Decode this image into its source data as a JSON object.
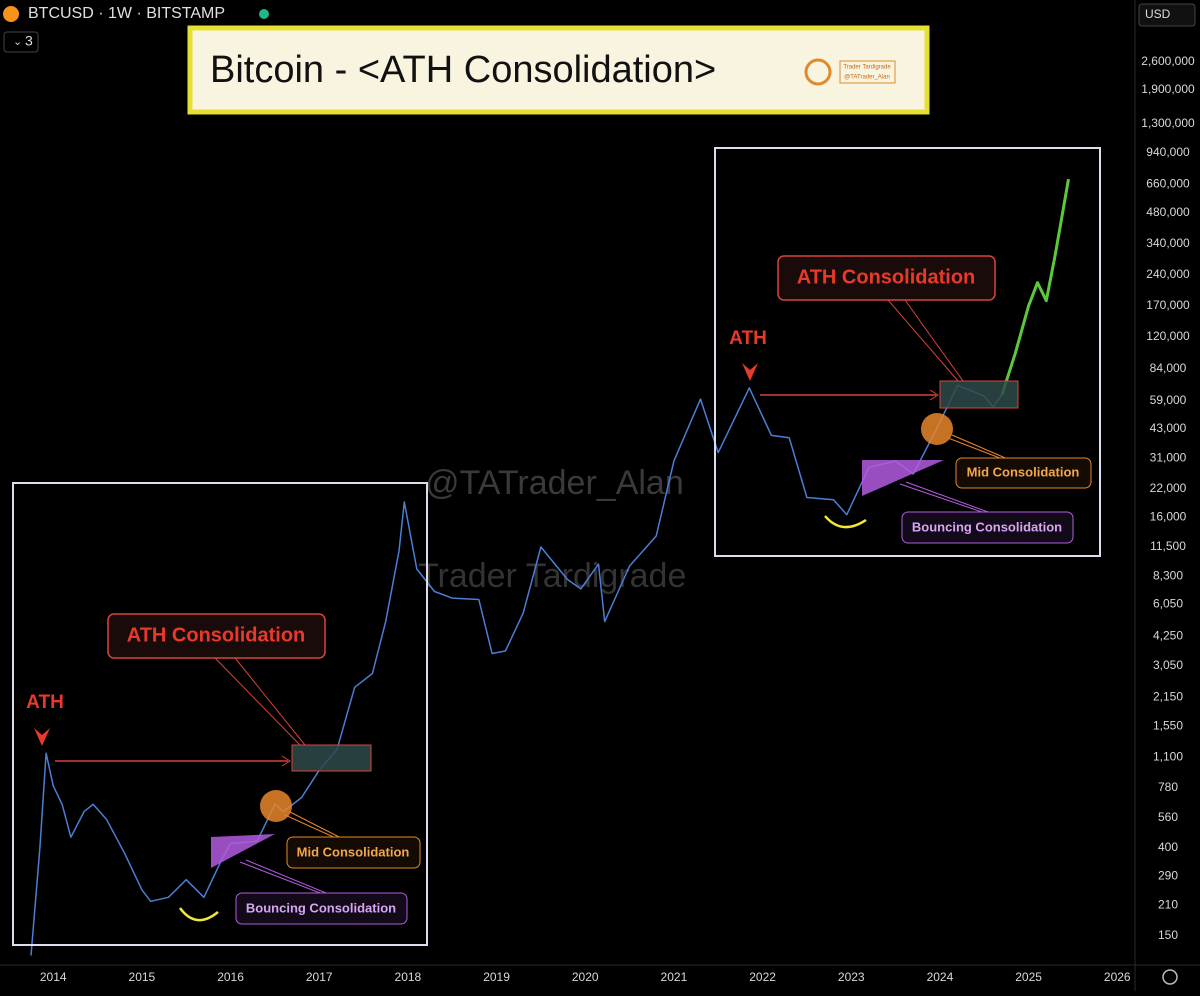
{
  "chart_data": {
    "type": "line",
    "title": "Bitcoin - <ATH Consolidation>",
    "symbol": "BTCUSD · 1W · BITSTAMP",
    "indicator_count": 3,
    "currency": "USD",
    "logo_text": [
      "Trader Tardigrade",
      "@TATrader_Alan"
    ],
    "watermarks": [
      "@TATrader_Alan",
      "Trader Tardigrade"
    ],
    "annotations": [
      "ATH",
      "ATH Consolidation",
      "Mid Consolidation",
      "Bouncing Consolidation",
      "ATH",
      "ATH Consolidation",
      "Mid Consolidation",
      "Bouncing Consolidation"
    ],
    "log_scale": true,
    "grid": false,
    "xlim": [
      2013.4,
      2026.2
    ],
    "xticks": [
      2014,
      2015,
      2016,
      2017,
      2018,
      2019,
      2020,
      2021,
      2022,
      2023,
      2024,
      2025,
      2026
    ],
    "ylim": [
      108,
      3700000
    ],
    "yticks": [
      150,
      210,
      290,
      400,
      560,
      780,
      {
        "value": 1100,
        "label": "1,100"
      },
      {
        "value": 1550,
        "label": "1,550"
      },
      {
        "value": 2150,
        "label": "2,150"
      },
      {
        "value": 3050,
        "label": "3,050"
      },
      {
        "value": 4250,
        "label": "4,250"
      },
      {
        "value": 6050,
        "label": "6,050"
      },
      {
        "value": 8300,
        "label": "8,300"
      },
      {
        "value": 11500,
        "label": "11,500"
      },
      {
        "value": 16000,
        "label": "16,000"
      },
      {
        "value": 22000,
        "label": "22,000"
      },
      {
        "value": 31000,
        "label": "31,000"
      },
      {
        "value": 43000,
        "label": "43,000"
      },
      {
        "value": 59000,
        "label": "59,000"
      },
      {
        "value": 84000,
        "label": "84,000"
      },
      {
        "value": 120000,
        "label": "120,000"
      },
      {
        "value": 170000,
        "label": "170,000"
      },
      {
        "value": 240000,
        "label": "240,000"
      },
      {
        "value": 340000,
        "label": "340,000"
      },
      {
        "value": 480000,
        "label": "480,000"
      },
      {
        "value": 660000,
        "label": "660,000"
      },
      {
        "value": 940000,
        "label": "940,000"
      },
      {
        "value": 1300000,
        "label": "1,300,000"
      },
      {
        "value": 1900000,
        "label": "1,900,000"
      },
      {
        "value": 2600000,
        "label": "2,600,000"
      }
    ],
    "series": [
      {
        "color": "#4a7fd4",
        "x": [
          2013.75,
          2013.85,
          2013.92,
          2014.0,
          2014.1,
          2014.2,
          2014.35,
          2014.45,
          2014.6,
          2014.8,
          2015.0,
          2015.1,
          2015.3,
          2015.5,
          2015.7,
          2015.9,
          2016.0,
          2016.3,
          2016.5,
          2016.6,
          2016.8,
          2017.0,
          2017.2,
          2017.4,
          2017.6,
          2017.75,
          2017.9,
          2017.96,
          2018.1,
          2018.3,
          2018.5,
          2018.8,
          2018.95,
          2019.1,
          2019.3,
          2019.5,
          2019.8,
          2019.95,
          2020.15,
          2020.22,
          2020.5,
          2020.8,
          2021.0,
          2021.3,
          2021.5,
          2021.85,
          2022.1,
          2022.3,
          2022.5,
          2022.8,
          2022.95,
          2023.2,
          2023.5,
          2023.7,
          2023.95,
          2024.2,
          2024.5,
          2024.6,
          2024.7
        ],
        "values": [
          120,
          400,
          1150,
          800,
          650,
          450,
          600,
          650,
          550,
          380,
          250,
          220,
          230,
          280,
          230,
          350,
          420,
          430,
          650,
          600,
          700,
          950,
          1200,
          2400,
          2800,
          5000,
          11000,
          19000,
          9000,
          7000,
          6500,
          6400,
          3500,
          3600,
          5500,
          11500,
          8000,
          7200,
          9500,
          5000,
          9300,
          13000,
          30000,
          60000,
          33000,
          68000,
          40000,
          39000,
          20000,
          19500,
          16500,
          28000,
          30000,
          26000,
          42000,
          70000,
          62000,
          55000,
          63000
        ]
      },
      {
        "color": "#5cc93a",
        "x": [
          2024.7,
          2024.85,
          2025.0,
          2025.1,
          2025.2,
          2025.3,
          2025.45
        ],
        "values": [
          63000,
          100000,
          170000,
          220000,
          180000,
          300000,
          700000
        ]
      }
    ]
  }
}
